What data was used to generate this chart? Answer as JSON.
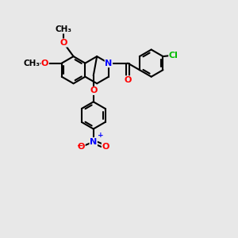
{
  "bg": "#e8e8e8",
  "bc": "#000000",
  "bw": 1.5,
  "colors": {
    "O": "#ff0000",
    "N": "#0000ff",
    "Cl": "#00bb00",
    "C": "#000000"
  },
  "fs": 8.0
}
